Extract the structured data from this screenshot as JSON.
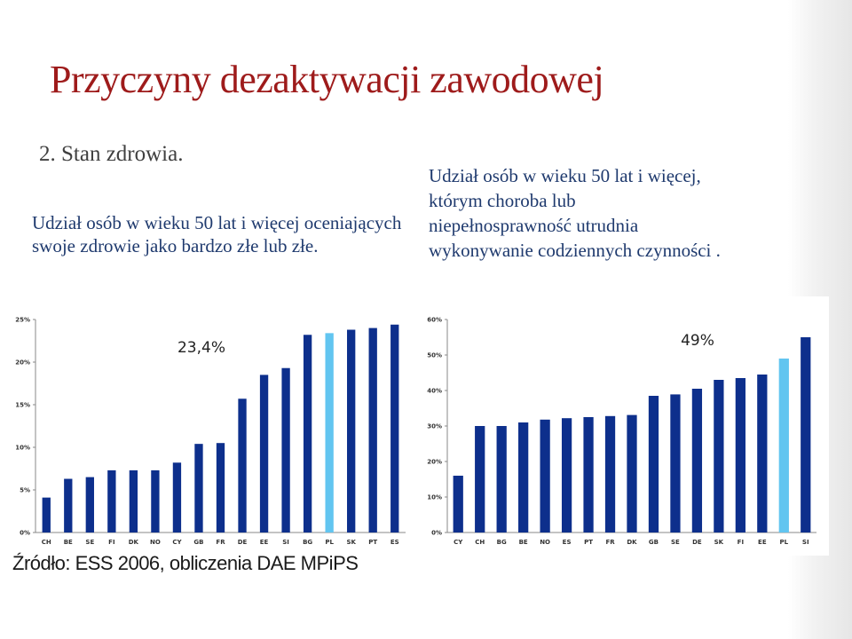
{
  "slide": {
    "title": "Przyczyny dezaktywacji zawodowej",
    "point": "2. Stan zdrowia.",
    "left_text": "Udział osób w wieku 50 lat i więcej oceniających swoje zdrowie jako bardzo złe lub złe.",
    "right_text": "Udział osób w wieku 50 lat i więcej, którym choroba lub niepełnosprawność utrudnia wykonywanie codziennych czynności .",
    "source": "Źródło: ESS 2006, obliczenia DAE MPiPS"
  },
  "colors": {
    "bar": "#0d2f8c",
    "highlight": "#62c5f0",
    "title": "#9e1b1b",
    "text": "#1f3a6e"
  },
  "chart_data": [
    {
      "type": "bar",
      "categories": [
        "CH",
        "BE",
        "SE",
        "FI",
        "DK",
        "NO",
        "CY",
        "GB",
        "FR",
        "DE",
        "EE",
        "SI",
        "BG",
        "PL",
        "SK",
        "PT",
        "ES"
      ],
      "values": [
        4.1,
        6.3,
        6.5,
        7.3,
        7.3,
        7.3,
        8.2,
        10.4,
        10.5,
        15.7,
        18.5,
        19.3,
        23.2,
        23.4,
        23.8,
        24.0,
        24.4
      ],
      "highlight": "PL",
      "annotation": "23,4%",
      "ylim": [
        0,
        25
      ],
      "yticks": [
        "0%",
        "5%",
        "10%",
        "15%",
        "20%",
        "25%"
      ],
      "grid": false
    },
    {
      "type": "bar",
      "categories": [
        "CY",
        "CH",
        "BG",
        "BE",
        "NO",
        "ES",
        "PT",
        "FR",
        "DK",
        "GB",
        "SE",
        "DE",
        "SK",
        "FI",
        "EE",
        "PL",
        "SI"
      ],
      "values": [
        16.0,
        30.0,
        30.0,
        31.0,
        31.8,
        32.2,
        32.5,
        32.8,
        33.1,
        38.5,
        38.9,
        40.5,
        43.0,
        43.5,
        44.5,
        49.0,
        55.0
      ],
      "highlight": "PL",
      "annotation": "49%",
      "ylim": [
        0,
        60
      ],
      "yticks": [
        "0%",
        "10%",
        "20%",
        "30%",
        "40%",
        "50%",
        "60%"
      ],
      "grid": false
    }
  ]
}
